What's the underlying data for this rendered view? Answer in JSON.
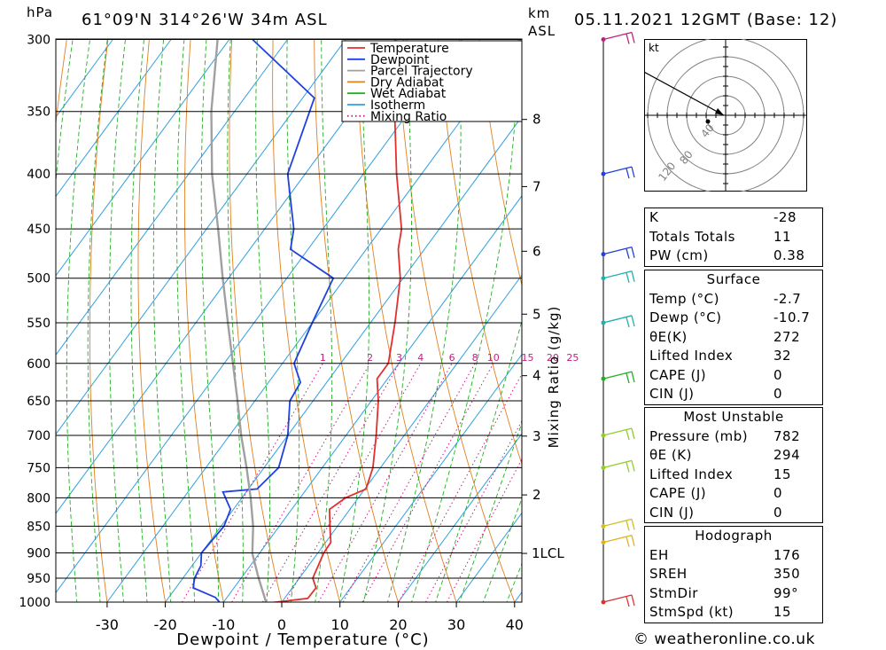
{
  "header": {
    "unit_left": "hPa",
    "location": "61°09'N  314°26'W  34m  ASL",
    "unit_km": "km",
    "unit_asl": "ASL",
    "datetime": "05.11.2021  12GMT  (Base: 12)"
  },
  "chart_data": {
    "type": "line",
    "title": "",
    "xlabel": "Dewpoint / Temperature (°C)",
    "ylabel": "hPa",
    "y2label": "Mixing Ratio (g/kg)",
    "xlim": [
      -40,
      40
    ],
    "ylim": [
      1000,
      300
    ],
    "y_log_scale": true,
    "skew_t": true,
    "pressure_ticks": [
      300,
      350,
      400,
      450,
      500,
      550,
      600,
      650,
      700,
      750,
      800,
      850,
      900,
      950,
      1000
    ],
    "temperature_ticks": [
      -30,
      -20,
      -10,
      0,
      10,
      20,
      30,
      40
    ],
    "km_ticks": [
      {
        "label": "8",
        "p": 356
      },
      {
        "label": "7",
        "p": 411
      },
      {
        "label": "6",
        "p": 472
      },
      {
        "label": "5",
        "p": 540
      },
      {
        "label": "4",
        "p": 616
      },
      {
        "label": "3",
        "p": 701
      },
      {
        "label": "2",
        "p": 795
      }
    ],
    "lcl_label": "1LCL",
    "lcl_p": 901,
    "mixing_ratio_labels": [
      "1",
      "2",
      "3",
      "4",
      "6",
      "8",
      "10",
      "15",
      "20",
      "25"
    ],
    "legend": {
      "position": "top-right",
      "entries": [
        {
          "name": "Temperature",
          "color": "#e03030",
          "style": "solid"
        },
        {
          "name": "Dewpoint",
          "color": "#2040e0",
          "style": "solid"
        },
        {
          "name": "Parcel Trajectory",
          "color": "#a0a0a0",
          "style": "solid"
        },
        {
          "name": "Dry Adiabat",
          "color": "#e08020",
          "style": "solid"
        },
        {
          "name": "Wet Adiabat",
          "color": "#20b020",
          "style": "solid"
        },
        {
          "name": "Isotherm",
          "color": "#30a0e0",
          "style": "solid"
        },
        {
          "name": "Mixing Ratio",
          "color": "#c02080",
          "style": "dotted"
        }
      ]
    },
    "series": [
      {
        "name": "Temperature",
        "color": "#e03030",
        "points": [
          [
            1012,
            2
          ],
          [
            1005,
            -4
          ],
          [
            992,
            4
          ],
          [
            970,
            4.1
          ],
          [
            950,
            2.3
          ],
          [
            900,
            1
          ],
          [
            880,
            0.9
          ],
          [
            850,
            -1.3
          ],
          [
            820,
            -3.5
          ],
          [
            800,
            -2.2
          ],
          [
            785,
            0.2
          ],
          [
            750,
            -1.3
          ],
          [
            700,
            -4.8
          ],
          [
            650,
            -8.8
          ],
          [
            620,
            -11.8
          ],
          [
            600,
            -11.8
          ],
          [
            550,
            -15.8
          ],
          [
            500,
            -20.5
          ],
          [
            470,
            -24.5
          ],
          [
            450,
            -26.5
          ],
          [
            400,
            -34.3
          ],
          [
            350,
            -42.5
          ],
          [
            300,
            -51.5
          ]
        ]
      },
      {
        "name": "Dewpoint",
        "color": "#2040e0",
        "points": [
          [
            1012,
            -10.7
          ],
          [
            1000,
            -10.7
          ],
          [
            990,
            -12
          ],
          [
            970,
            -17
          ],
          [
            950,
            -18
          ],
          [
            925,
            -18.5
          ],
          [
            900,
            -20
          ],
          [
            850,
            -19.5
          ],
          [
            820,
            -20.5
          ],
          [
            790,
            -24
          ],
          [
            785,
            -18.5
          ],
          [
            750,
            -17.5
          ],
          [
            700,
            -20
          ],
          [
            650,
            -24
          ],
          [
            625,
            -24.5
          ],
          [
            600,
            -28
          ],
          [
            550,
            -30
          ],
          [
            500,
            -32
          ],
          [
            470,
            -43
          ],
          [
            450,
            -45
          ],
          [
            400,
            -53
          ],
          [
            340,
            -58
          ],
          [
            300,
            -76
          ]
        ]
      },
      {
        "name": "Parcel Trajectory",
        "color": "#a0a0a0",
        "points": [
          [
            1000,
            -2.7
          ],
          [
            950,
            -7
          ],
          [
            901,
            -11.2
          ],
          [
            850,
            -14.5
          ],
          [
            800,
            -18.5
          ],
          [
            750,
            -23
          ],
          [
            700,
            -28
          ],
          [
            650,
            -33
          ],
          [
            600,
            -38.5
          ],
          [
            550,
            -44.5
          ],
          [
            500,
            -51
          ],
          [
            450,
            -58
          ],
          [
            400,
            -66
          ],
          [
            350,
            -74
          ],
          [
            300,
            -82
          ]
        ]
      }
    ],
    "wind_barbs": [
      {
        "p": 300,
        "color": "#c02080"
      },
      {
        "p": 400,
        "color": "#2040e0"
      },
      {
        "p": 475,
        "color": "#2040e0"
      },
      {
        "p": 500,
        "color": "#20b0b0"
      },
      {
        "p": 550,
        "color": "#20b0b0"
      },
      {
        "p": 620,
        "color": "#20b020"
      },
      {
        "p": 700,
        "color": "#90d020"
      },
      {
        "p": 750,
        "color": "#90d020"
      },
      {
        "p": 850,
        "color": "#d0c020"
      },
      {
        "p": 880,
        "color": "#e0b020"
      },
      {
        "p": 1000,
        "color": "#e03030"
      }
    ]
  },
  "hodograph": {
    "unit": "kt",
    "ring_labels": [
      "40",
      "80",
      "120"
    ]
  },
  "indices": {
    "top": [
      {
        "k": "K",
        "v": "-28"
      },
      {
        "k": "Totals Totals",
        "v": "11"
      },
      {
        "k": "PW (cm)",
        "v": "0.38"
      }
    ],
    "surface_title": "Surface",
    "surface": [
      {
        "k": "Temp (°C)",
        "v": "-2.7"
      },
      {
        "k": "Dewp (°C)",
        "v": "-10.7"
      },
      {
        "k": "θE(K)",
        "v": "272"
      },
      {
        "k": "Lifted Index",
        "v": "32"
      },
      {
        "k": "CAPE (J)",
        "v": "0"
      },
      {
        "k": "CIN (J)",
        "v": "0"
      }
    ],
    "mu_title": "Most Unstable",
    "mu": [
      {
        "k": "Pressure (mb)",
        "v": "782"
      },
      {
        "k": "θE (K)",
        "v": "294"
      },
      {
        "k": "Lifted Index",
        "v": "15"
      },
      {
        "k": "CAPE (J)",
        "v": "0"
      },
      {
        "k": "CIN (J)",
        "v": "0"
      }
    ],
    "hodo_title": "Hodograph",
    "hodo": [
      {
        "k": "EH",
        "v": "176"
      },
      {
        "k": "SREH",
        "v": "350"
      },
      {
        "k": "StmDir",
        "v": "99°"
      },
      {
        "k": "StmSpd (kt)",
        "v": "15"
      }
    ]
  },
  "footer": {
    "copyright": "© weatheronline.co.uk"
  }
}
